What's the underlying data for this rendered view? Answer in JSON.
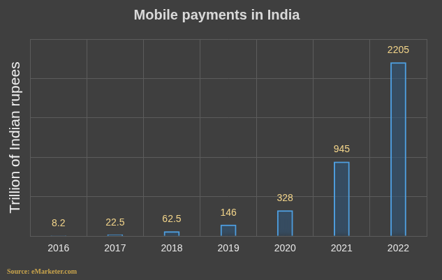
{
  "chart_data": {
    "type": "bar",
    "title": "Mobile payments in India",
    "y_label": "Trillion of Indian rupees",
    "source": "Source: eMarketer.com",
    "categories": [
      "2016",
      "2017",
      "2018",
      "2019",
      "2020",
      "2021",
      "2022"
    ],
    "values": [
      8.2,
      22.5,
      62.5,
      146,
      328,
      945,
      2205
    ],
    "color": "#4f9fe0",
    "ylim": [
      0,
      2500
    ],
    "yticks": [
      0,
      500,
      1000,
      1500,
      2000,
      2500
    ],
    "grid": true,
    "data_labels": true,
    "tick_labels": "x"
  }
}
